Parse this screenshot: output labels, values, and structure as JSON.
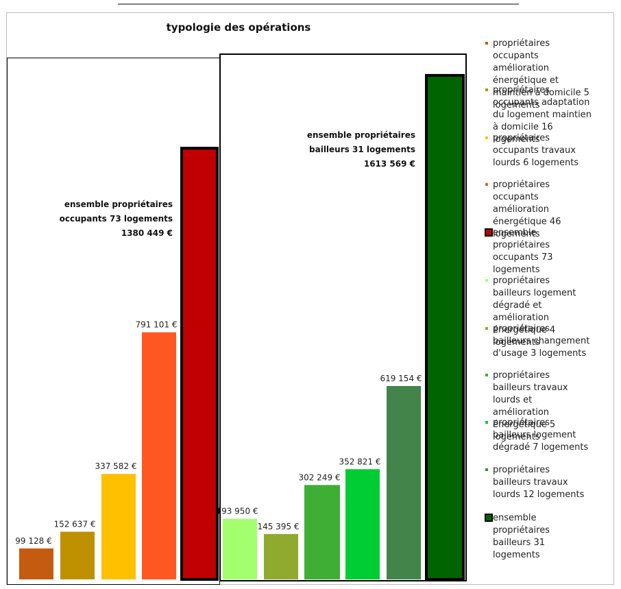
{
  "chart_data": {
    "type": "bar",
    "title": "typologie des opérations",
    "xlabel": "",
    "ylabel": "",
    "ylim": [
      0,
      1800000
    ],
    "grid": false,
    "legend_position": "right",
    "series": [
      {
        "legend": "propriétaires occupants amélioration énergétique et maintien à domicile 5 logements",
        "value": 99128,
        "label": "99 128 €",
        "color": "#c55a11",
        "group": "occupants"
      },
      {
        "legend": "propriétaires occupants adaptation du logement maintien à domicile 16 logements",
        "value": 152637,
        "label": "152 637 €",
        "color": "#bf9000",
        "group": "occupants"
      },
      {
        "legend": "propriétaires occupants travaux lourds 6 logements",
        "value": 337582,
        "label": "337 582 €",
        "color": "#ffc000",
        "group": "occupants"
      },
      {
        "legend": "propriétaires occupants amélioration énergétique 46 logements",
        "value": 791101,
        "label": "791 101 €",
        "color": "#ff5722",
        "group": "occupants"
      },
      {
        "legend": "ensemble propriétaires occupants 73 logements",
        "value": 1380449,
        "label": "1380 449 €",
        "color": "#c00000",
        "group": "occupants",
        "total": true
      },
      {
        "legend": "propriétaires bailleurs logement dégradé et amélioration énergétique 4 logements",
        "value": 193950,
        "label": "193 950 €",
        "color": "#a3ff6e",
        "group": "bailleurs"
      },
      {
        "legend": "propriétaires bailleurs changement d'usage 3 logements",
        "value": 145395,
        "label": "145 395 €",
        "color": "#8faa2e",
        "group": "bailleurs"
      },
      {
        "legend": "propriétaires bailleurs travaux lourds et amélioration énergétique 5 logements",
        "value": 302249,
        "label": "302 249 €",
        "color": "#3fae34",
        "group": "bailleurs"
      },
      {
        "legend": "propriétaires bailleurs logement dégradé 7 logements",
        "value": 352821,
        "label": "352 821 €",
        "color": "#00cc33",
        "group": "bailleurs"
      },
      {
        "legend": "propriétaires bailleurs travaux lourds 12 logements",
        "value": 619154,
        "label": "619 154 €",
        "color": "#43844a",
        "group": "bailleurs"
      },
      {
        "legend": "ensemble propriétaires bailleurs 31 logements",
        "value": 1613569,
        "label": "1613 569 €",
        "color": "#006400",
        "group": "bailleurs",
        "total": true
      }
    ],
    "annotations": [
      {
        "lines": [
          "ensemble propriétaires",
          "occupants 73 logements",
          "1380 449 €"
        ]
      },
      {
        "lines": [
          "ensemble propriétaires",
          "bailleurs 31 logements",
          "1613 569 €"
        ]
      }
    ]
  }
}
